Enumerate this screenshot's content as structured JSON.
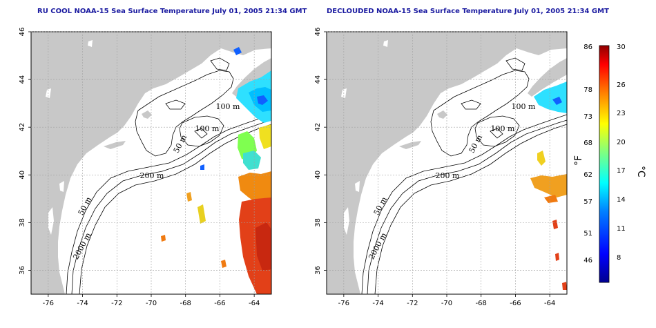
{
  "panels": [
    {
      "id": "rucool",
      "title": "RU COOL NOAA-15 Sea Surface Temperature July 01, 2005 21:34 GMT"
    },
    {
      "id": "declouded",
      "title": "DECLOUDED NOAA-15 Sea Surface Temperature July 01, 2005 21:34 GMT"
    }
  ],
  "map": {
    "lon_ticks": [
      "-76",
      "-74",
      "-72",
      "-70",
      "-68",
      "-66",
      "-64"
    ],
    "lat_ticks": [
      "46",
      "44",
      "42",
      "40",
      "38",
      "36"
    ],
    "lon_range": [
      -77,
      -63
    ],
    "lat_range": [
      35,
      46
    ],
    "grid": true,
    "land_color": "#c8c8c8",
    "ocean_color": "#ffffff",
    "contour_labels": {
      "label_100m_a": "100 m",
      "label_100m_b": "100 m",
      "label_50m_a": "50 m",
      "label_200m": "200 m",
      "label_50m_b": "50 m",
      "label_2000m": "2000 m"
    }
  },
  "colorbar": {
    "fahrenheit_ticks": [
      "86",
      "78",
      "73",
      "68",
      "62",
      "57",
      "51",
      "46"
    ],
    "celsius_ticks": [
      "30",
      "26",
      "23",
      "20",
      "17",
      "14",
      "11",
      "8"
    ],
    "fahrenheit_unit": "°F",
    "celsius_unit": "°C",
    "range_c": [
      5,
      30
    ],
    "colors": [
      "#00008f",
      "#0000ff",
      "#0080ff",
      "#00ffff",
      "#80ff80",
      "#ffff00",
      "#ff8000",
      "#ff0000",
      "#8f0000"
    ]
  }
}
